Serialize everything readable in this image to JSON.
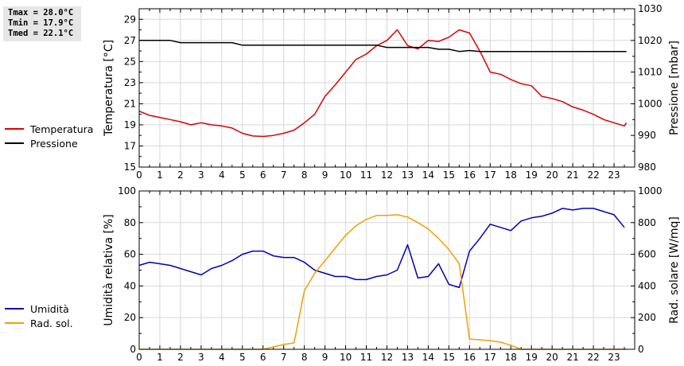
{
  "stats": {
    "tmax": "Tmax = 28.0°C",
    "tmin": "Tmin = 17.9°C",
    "tmed": "Tmed = 22.1°C"
  },
  "colors": {
    "temperatura": "#dd0000",
    "pressione": "#000000",
    "umidita": "#0000bb",
    "rad_sol": "#f0a000",
    "grid": "#d8d8d8"
  },
  "chart_data": [
    {
      "type": "line",
      "legend": [
        {
          "name": "Temperatura",
          "color": "#dd0000"
        },
        {
          "name": "Pressione",
          "color": "#000000"
        }
      ],
      "xlabel": "",
      "ylabel_left": "Temperatura [°C]",
      "ylabel_right": "Pressione [mbar]",
      "xlim": [
        0,
        24
      ],
      "ylim_left": [
        15,
        30
      ],
      "ylim_right": [
        980,
        1030
      ],
      "x_ticks": [
        "0",
        "1",
        "2",
        "3",
        "4",
        "5",
        "6",
        "7",
        "8",
        "9",
        "10",
        "11",
        "12",
        "13",
        "14",
        "15",
        "16",
        "17",
        "18",
        "19",
        "20",
        "21",
        "22",
        "23"
      ],
      "y_ticks_left": [
        "15",
        "17",
        "19",
        "21",
        "23",
        "25",
        "27",
        "29"
      ],
      "y_ticks_right": [
        "980",
        "990",
        "1000",
        "1010",
        "1020",
        "1030"
      ],
      "grid": true,
      "series": [
        {
          "name": "Temperatura",
          "axis": "left",
          "color": "#dd0000",
          "points": [
            [
              0,
              20.3
            ],
            [
              0.5,
              19.9
            ],
            [
              1,
              19.7
            ],
            [
              1.5,
              19.5
            ],
            [
              2,
              19.3
            ],
            [
              2.5,
              19.0
            ],
            [
              3,
              19.2
            ],
            [
              3.5,
              19.0
            ],
            [
              4,
              18.9
            ],
            [
              4.5,
              18.7
            ],
            [
              5,
              18.2
            ],
            [
              5.5,
              17.95
            ],
            [
              6,
              17.9
            ],
            [
              6.5,
              18.0
            ],
            [
              7,
              18.2
            ],
            [
              7.5,
              18.5
            ],
            [
              8,
              19.2
            ],
            [
              8.5,
              20.0
            ],
            [
              9,
              21.7
            ],
            [
              9.5,
              22.8
            ],
            [
              10,
              24.0
            ],
            [
              10.5,
              25.2
            ],
            [
              11,
              25.7
            ],
            [
              11.5,
              26.5
            ],
            [
              12,
              27.0
            ],
            [
              12.5,
              28.0
            ],
            [
              13,
              26.5
            ],
            [
              13.5,
              26.2
            ],
            [
              14,
              27.0
            ],
            [
              14.5,
              26.9
            ],
            [
              15,
              27.3
            ],
            [
              15.5,
              28.0
            ],
            [
              16,
              27.7
            ],
            [
              16.5,
              26.0
            ],
            [
              17,
              24.0
            ],
            [
              17.5,
              23.8
            ],
            [
              18,
              23.3
            ],
            [
              18.5,
              22.9
            ],
            [
              19,
              22.7
            ],
            [
              19.5,
              21.7
            ],
            [
              20,
              21.5
            ],
            [
              20.5,
              21.2
            ],
            [
              21,
              20.7
            ],
            [
              21.5,
              20.4
            ],
            [
              22,
              20.0
            ],
            [
              22.5,
              19.5
            ],
            [
              23,
              19.2
            ],
            [
              23.5,
              18.9
            ],
            [
              24,
              19.2
            ]
          ]
        },
        {
          "name": "Pressione",
          "axis": "right",
          "color": "#000000",
          "points": [
            [
              0,
              1020
            ],
            [
              1.5,
              1020
            ],
            [
              2,
              1019.3
            ],
            [
              4.5,
              1019.3
            ],
            [
              5,
              1018.5
            ],
            [
              6,
              1018.5
            ],
            [
              11.5,
              1018.5
            ],
            [
              12,
              1017.8
            ],
            [
              14,
              1017.8
            ],
            [
              14.5,
              1017.2
            ],
            [
              15,
              1017.2
            ],
            [
              15.5,
              1016.5
            ],
            [
              16,
              1016.8
            ],
            [
              16.5,
              1016.5
            ],
            [
              17,
              1016.5
            ],
            [
              24,
              1016.5
            ]
          ]
        }
      ]
    },
    {
      "type": "line",
      "legend": [
        {
          "name": "Umidità",
          "color": "#0000bb"
        },
        {
          "name": "Rad. sol.",
          "color": "#f0a000"
        }
      ],
      "xlabel": "",
      "ylabel_left": "Umidità relativa [%]",
      "ylabel_right": "Rad. solare [W/mq]",
      "xlim": [
        0,
        24
      ],
      "ylim_left": [
        0,
        100
      ],
      "ylim_right": [
        0,
        1000
      ],
      "x_ticks": [
        "0",
        "1",
        "2",
        "3",
        "4",
        "5",
        "6",
        "7",
        "8",
        "9",
        "10",
        "11",
        "12",
        "13",
        "14",
        "15",
        "16",
        "17",
        "18",
        "19",
        "20",
        "21",
        "22",
        "23"
      ],
      "y_ticks_left": [
        "0",
        "20",
        "40",
        "60",
        "80",
        "100"
      ],
      "y_ticks_right": [
        "0",
        "200",
        "400",
        "600",
        "800",
        "1000"
      ],
      "grid": true,
      "series": [
        {
          "name": "Umidità",
          "axis": "left",
          "color": "#0000bb",
          "points": [
            [
              0,
              53
            ],
            [
              0.5,
              55
            ],
            [
              1,
              54
            ],
            [
              1.5,
              53
            ],
            [
              2,
              51
            ],
            [
              2.5,
              49
            ],
            [
              3,
              47
            ],
            [
              3.5,
              51
            ],
            [
              4,
              53
            ],
            [
              4.5,
              56
            ],
            [
              5,
              60
            ],
            [
              5.5,
              62
            ],
            [
              6,
              62
            ],
            [
              6.5,
              59
            ],
            [
              7,
              58
            ],
            [
              7.5,
              58
            ],
            [
              8,
              55
            ],
            [
              8.5,
              50
            ],
            [
              9,
              48
            ],
            [
              9.5,
              46
            ],
            [
              10,
              46
            ],
            [
              10.5,
              44
            ],
            [
              11,
              44
            ],
            [
              11.5,
              46
            ],
            [
              12,
              47
            ],
            [
              12.5,
              50
            ],
            [
              13,
              66
            ],
            [
              13.5,
              45
            ],
            [
              14,
              46
            ],
            [
              14.5,
              54
            ],
            [
              15,
              41
            ],
            [
              15.5,
              39
            ],
            [
              16,
              62
            ],
            [
              16.5,
              70
            ],
            [
              17,
              79
            ],
            [
              17.5,
              77
            ],
            [
              18,
              75
            ],
            [
              18.5,
              81
            ],
            [
              19,
              83
            ],
            [
              19.5,
              84
            ],
            [
              20,
              86
            ],
            [
              20.5,
              89
            ],
            [
              21,
              88
            ],
            [
              21.5,
              89
            ],
            [
              22,
              89
            ],
            [
              22.5,
              87
            ],
            [
              23,
              85
            ],
            [
              23.5,
              77
            ]
          ]
        },
        {
          "name": "Rad. sol.",
          "axis": "right",
          "color": "#f0a000",
          "points": [
            [
              0,
              0
            ],
            [
              6,
              0
            ],
            [
              6.5,
              15
            ],
            [
              7,
              30
            ],
            [
              7.5,
              40
            ],
            [
              8,
              370
            ],
            [
              8.5,
              480
            ],
            [
              9,
              560
            ],
            [
              9.5,
              640
            ],
            [
              10,
              720
            ],
            [
              10.5,
              780
            ],
            [
              11,
              820
            ],
            [
              11.5,
              845
            ],
            [
              12,
              845
            ],
            [
              12.5,
              850
            ],
            [
              13,
              835
            ],
            [
              13.5,
              800
            ],
            [
              14,
              760
            ],
            [
              14.5,
              700
            ],
            [
              15,
              630
            ],
            [
              15.5,
              540
            ],
            [
              16,
              65
            ],
            [
              16.5,
              60
            ],
            [
              17,
              55
            ],
            [
              17.5,
              45
            ],
            [
              18,
              25
            ],
            [
              18.5,
              0
            ],
            [
              24,
              0
            ]
          ]
        }
      ]
    }
  ]
}
